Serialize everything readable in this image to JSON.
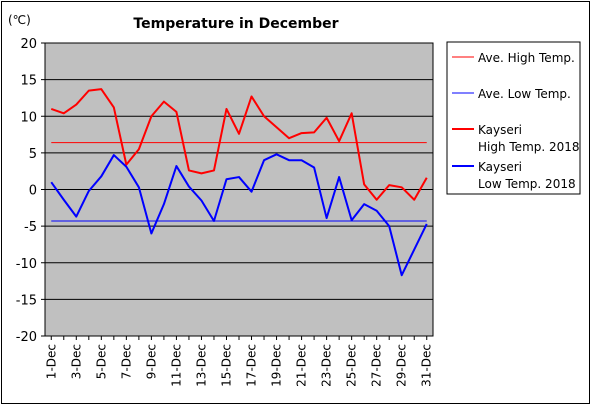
{
  "chart_data": {
    "type": "line",
    "title": "Temperature in December",
    "unit_label": "(℃)",
    "ylim": [
      -20,
      20
    ],
    "y_ticks": [
      "20",
      "15",
      "10",
      "5",
      "0",
      "-5",
      "-10",
      "-15",
      "-20"
    ],
    "x": [
      "1-Dec",
      "2-Dec",
      "3-Dec",
      "4-Dec",
      "5-Dec",
      "6-Dec",
      "7-Dec",
      "8-Dec",
      "9-Dec",
      "10-Dec",
      "11-Dec",
      "12-Dec",
      "13-Dec",
      "14-Dec",
      "15-Dec",
      "16-Dec",
      "17-Dec",
      "18-Dec",
      "19-Dec",
      "20-Dec",
      "21-Dec",
      "22-Dec",
      "23-Dec",
      "24-Dec",
      "25-Dec",
      "26-Dec",
      "27-Dec",
      "28-Dec",
      "29-Dec",
      "30-Dec",
      "31-Dec"
    ],
    "x_tick_labels": [
      "1-Dec",
      "3-Dec",
      "5-Dec",
      "7-Dec",
      "9-Dec",
      "11-Dec",
      "13-Dec",
      "15-Dec",
      "17-Dec",
      "19-Dec",
      "21-Dec",
      "23-Dec",
      "25-Dec",
      "27-Dec",
      "29-Dec",
      "31-Dec"
    ],
    "plot_background": "#c0c0c0",
    "grid": true,
    "legend_position": "right",
    "series": [
      {
        "name": "Ave. High Temp.",
        "color": "#ff0000",
        "width": 1,
        "values": [
          6.4,
          6.4,
          6.4,
          6.4,
          6.4,
          6.4,
          6.4,
          6.4,
          6.4,
          6.4,
          6.4,
          6.4,
          6.4,
          6.4,
          6.4,
          6.4,
          6.4,
          6.4,
          6.4,
          6.4,
          6.4,
          6.4,
          6.4,
          6.4,
          6.4,
          6.4,
          6.4,
          6.4,
          6.4,
          6.4,
          6.4
        ]
      },
      {
        "name": "Ave. Low Temp.",
        "color": "#0000ff",
        "width": 1,
        "values": [
          -4.3,
          -4.3,
          -4.3,
          -4.3,
          -4.3,
          -4.3,
          -4.3,
          -4.3,
          -4.3,
          -4.3,
          -4.3,
          -4.3,
          -4.3,
          -4.3,
          -4.3,
          -4.3,
          -4.3,
          -4.3,
          -4.3,
          -4.3,
          -4.3,
          -4.3,
          -4.3,
          -4.3,
          -4.3,
          -4.3,
          -4.3,
          -4.3,
          -4.3,
          -4.3,
          -4.3
        ]
      },
      {
        "name": "Kayseri High Temp. 2018",
        "legend_lines": [
          "Kayseri",
          "High Temp. 2018"
        ],
        "color": "#ff0000",
        "width": 2,
        "values": [
          11.0,
          10.4,
          11.6,
          13.5,
          13.7,
          11.2,
          3.4,
          5.5,
          10.0,
          12.0,
          10.6,
          2.6,
          2.2,
          2.6,
          11.0,
          7.6,
          12.7,
          10.0,
          8.5,
          7.0,
          7.7,
          7.8,
          9.8,
          6.6,
          10.4,
          0.7,
          -1.4,
          0.6,
          0.3,
          -1.4,
          1.6
        ]
      },
      {
        "name": "Kayseri Low Temp. 2018",
        "legend_lines": [
          "Kayseri",
          "Low Temp. 2018"
        ],
        "color": "#0000ff",
        "width": 2,
        "values": [
          1.0,
          -1.4,
          -3.7,
          -0.2,
          1.8,
          4.7,
          3.1,
          0.3,
          -6.0,
          -2.0,
          3.2,
          0.4,
          -1.5,
          -4.3,
          1.4,
          1.7,
          -0.3,
          4.0,
          4.8,
          4.0,
          4.0,
          3.0,
          -3.9,
          1.7,
          -4.2,
          -2.0,
          -2.9,
          -5.0,
          -11.7,
          -8.2,
          -4.7
        ]
      }
    ]
  }
}
